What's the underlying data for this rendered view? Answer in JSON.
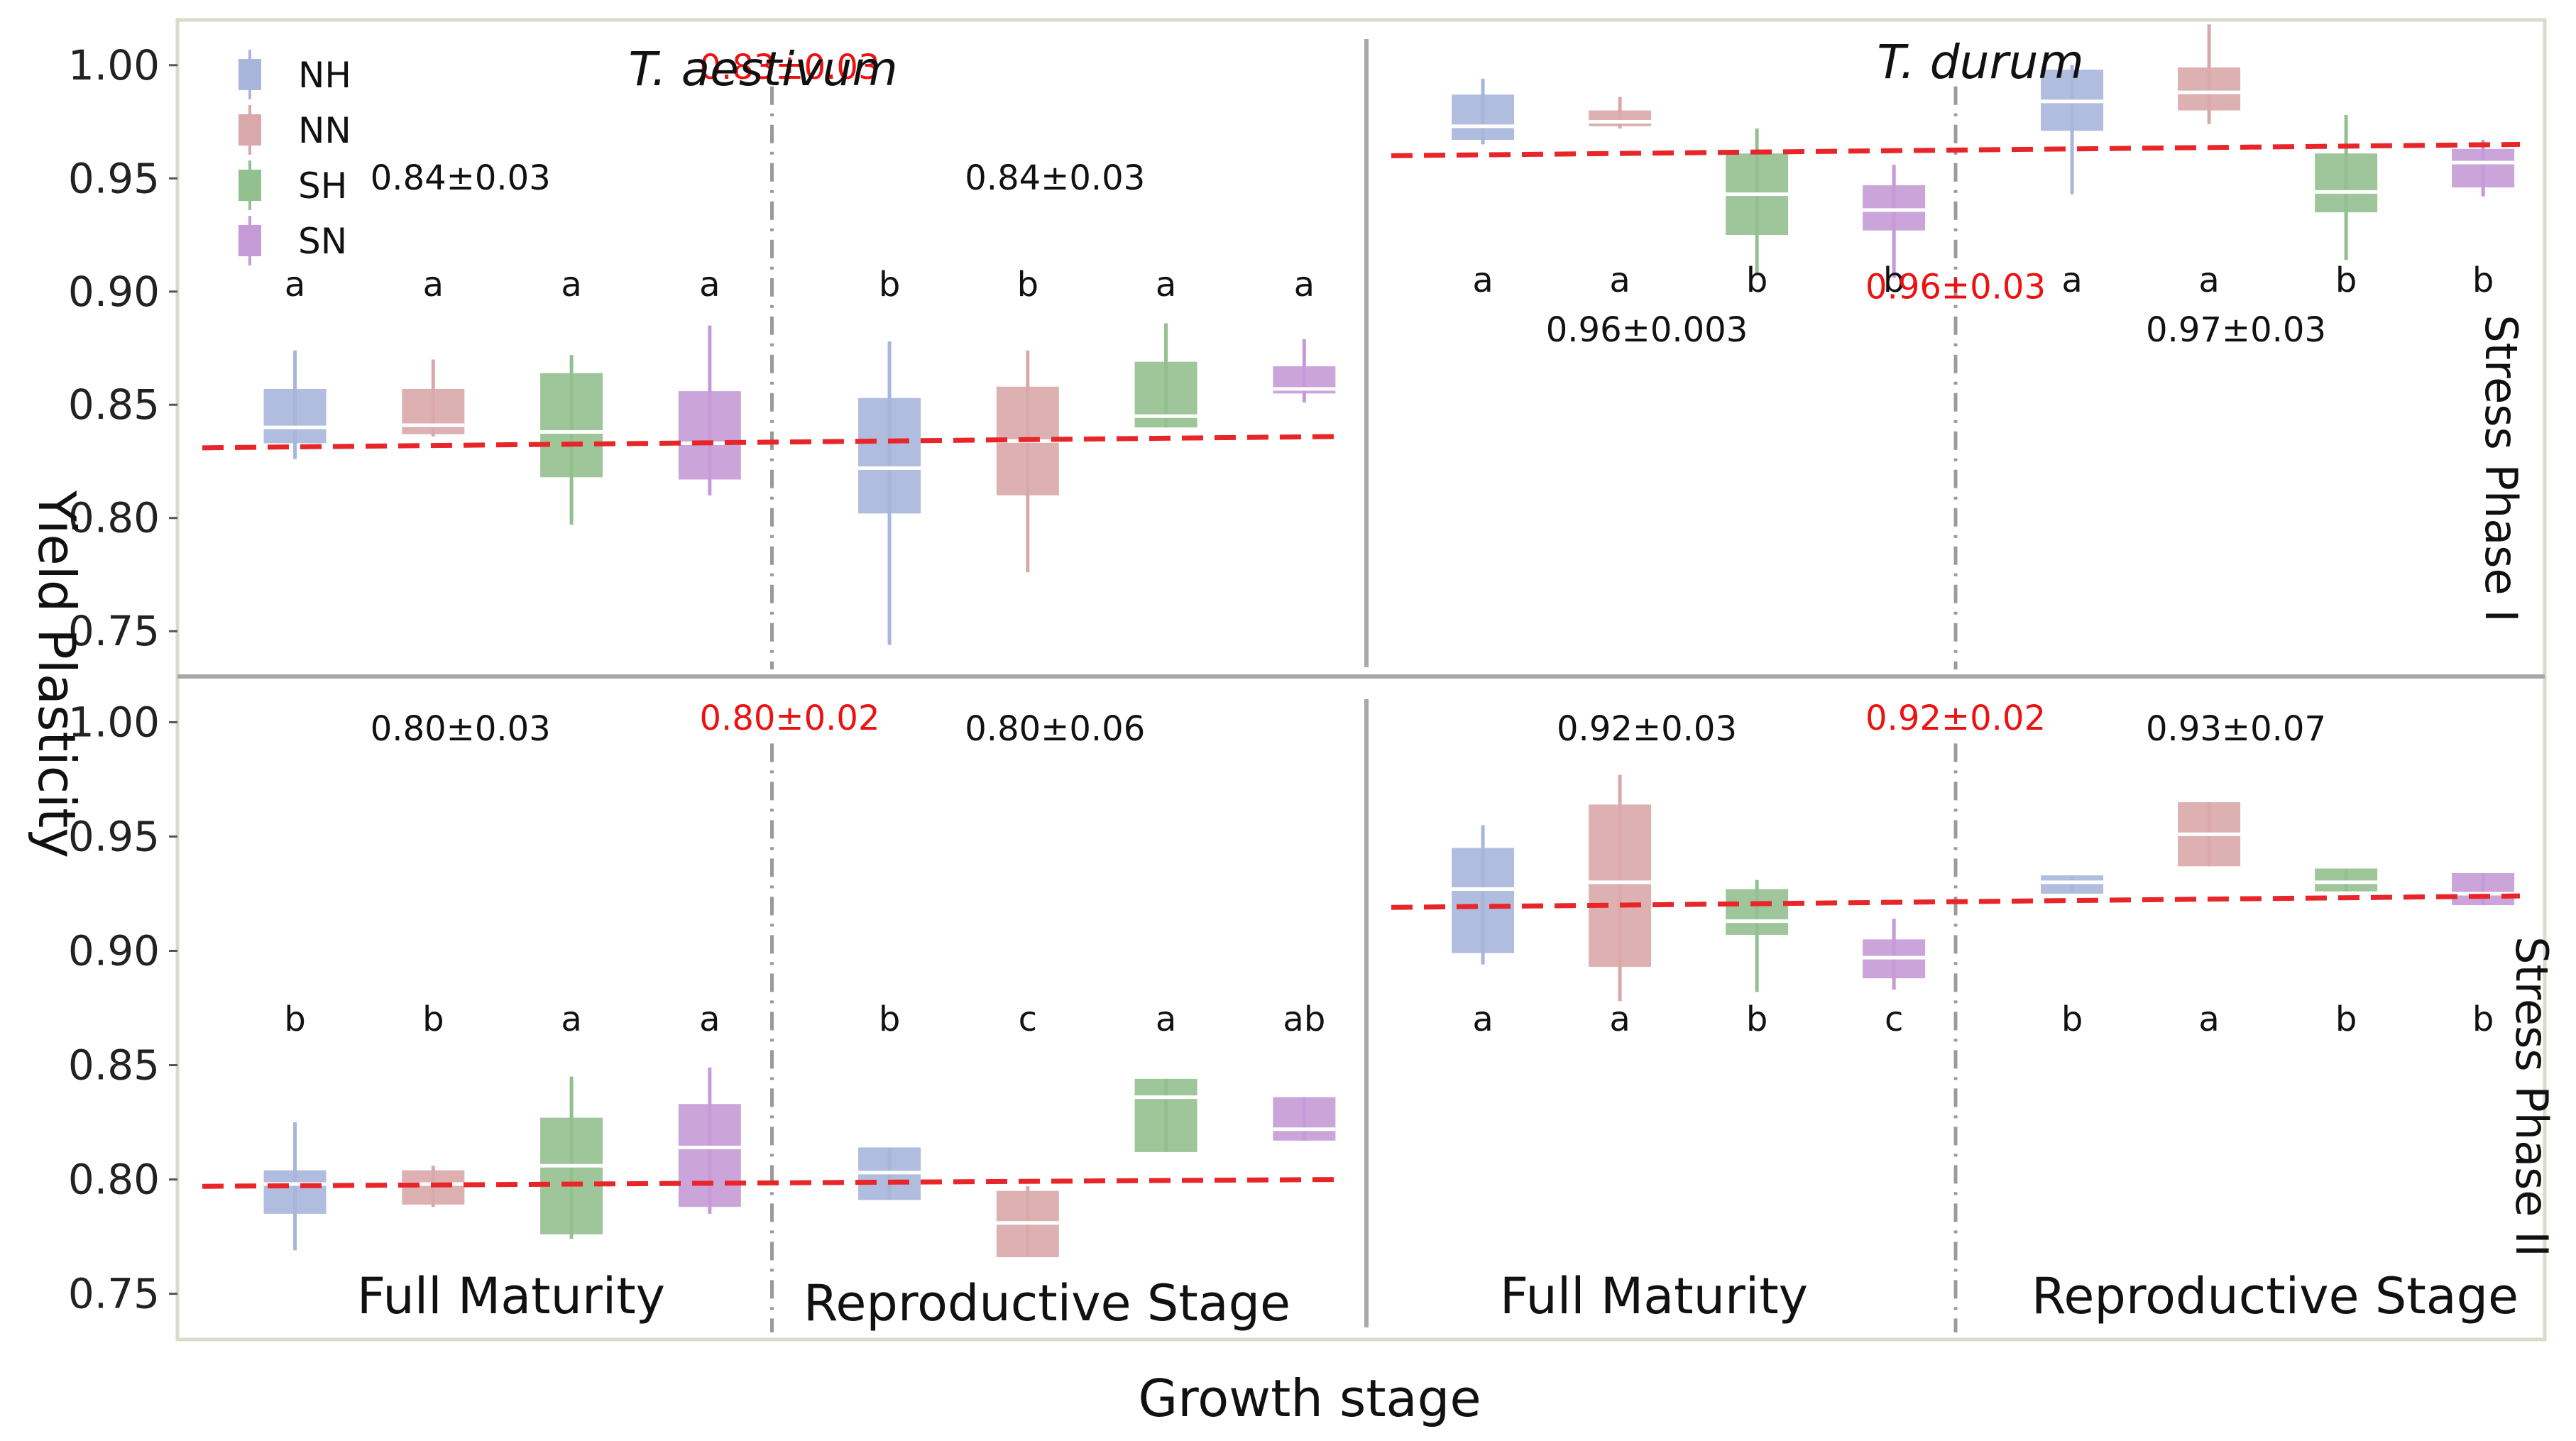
{
  "chart_data": {
    "type": "box",
    "xlabel": "Growth stage",
    "ylabel": "Yield Plasticity",
    "yticks": [
      "1.00",
      "0.95",
      "0.90",
      "0.85",
      "0.80",
      "0.75"
    ],
    "ylim": [
      0.73,
      1.02
    ],
    "legend": {
      "position": "top-left",
      "entries": [
        {
          "name": "NH",
          "color": "#a9b6dc"
        },
        {
          "name": "NN",
          "color": "#d9a8aa"
        },
        {
          "name": "SH",
          "color": "#93c08f"
        },
        {
          "name": "SN",
          "color": "#c59ad6"
        }
      ]
    },
    "columns": [
      {
        "title": "T. aestivum",
        "stages": [
          "Full Maturity",
          "Reproductive Stage"
        ]
      },
      {
        "title": "T. durum",
        "stages": [
          "Full Maturity",
          "Reproductive Stage"
        ]
      }
    ],
    "rows": [
      "Stress Phase I",
      "Stress Phase II"
    ],
    "panels": [
      {
        "row": 0,
        "col": 0,
        "pooled_label": "0.83±0.03",
        "trend": [
          0.831,
          0.836
        ],
        "stages": [
          {
            "stat": "0.84±0.03",
            "boxes": [
              {
                "group": "NH",
                "min": 0.826,
                "q1": 0.833,
                "median": 0.84,
                "q3": 0.857,
                "max": 0.874,
                "letter": "a"
              },
              {
                "group": "NN",
                "min": 0.836,
                "q1": 0.837,
                "median": 0.841,
                "q3": 0.857,
                "max": 0.87,
                "letter": "a"
              },
              {
                "group": "SH",
                "min": 0.797,
                "q1": 0.818,
                "median": 0.838,
                "q3": 0.864,
                "max": 0.872,
                "letter": "a"
              },
              {
                "group": "SN",
                "min": 0.81,
                "q1": 0.817,
                "median": 0.833,
                "q3": 0.856,
                "max": 0.885,
                "letter": "a"
              }
            ]
          },
          {
            "stat": "0.84±0.03",
            "boxes": [
              {
                "group": "NH",
                "min": 0.744,
                "q1": 0.802,
                "median": 0.822,
                "q3": 0.853,
                "max": 0.878,
                "letter": "b"
              },
              {
                "group": "NN",
                "min": 0.776,
                "q1": 0.81,
                "median": 0.834,
                "q3": 0.858,
                "max": 0.874,
                "letter": "b"
              },
              {
                "group": "SH",
                "min": 0.84,
                "q1": 0.84,
                "median": 0.845,
                "q3": 0.869,
                "max": 0.886,
                "letter": "a"
              },
              {
                "group": "SN",
                "min": 0.851,
                "q1": 0.855,
                "median": 0.857,
                "q3": 0.867,
                "max": 0.879,
                "letter": "a"
              }
            ]
          }
        ]
      },
      {
        "row": 0,
        "col": 1,
        "pooled_label": "0.96±0.03",
        "trend": [
          0.96,
          0.965
        ],
        "stages": [
          {
            "stat": "0.96±0.003",
            "boxes": [
              {
                "group": "NH",
                "min": 0.965,
                "q1": 0.967,
                "median": 0.973,
                "q3": 0.987,
                "max": 0.994,
                "letter": "a"
              },
              {
                "group": "NN",
                "min": 0.972,
                "q1": 0.973,
                "median": 0.975,
                "q3": 0.98,
                "max": 0.986,
                "letter": "a"
              },
              {
                "group": "SH",
                "min": 0.908,
                "q1": 0.925,
                "median": 0.943,
                "q3": 0.961,
                "max": 0.972,
                "letter": "b"
              },
              {
                "group": "SN",
                "min": 0.906,
                "q1": 0.927,
                "median": 0.936,
                "q3": 0.947,
                "max": 0.956,
                "letter": "b"
              }
            ]
          },
          {
            "stat": "0.97±0.03",
            "boxes": [
              {
                "group": "NH",
                "min": 0.943,
                "q1": 0.971,
                "median": 0.984,
                "q3": 0.998,
                "max": 1.0,
                "letter": "a"
              },
              {
                "group": "NN",
                "min": 0.974,
                "q1": 0.98,
                "median": 0.988,
                "q3": 0.999,
                "max": 1.018,
                "letter": "a"
              },
              {
                "group": "SH",
                "min": 0.914,
                "q1": 0.935,
                "median": 0.944,
                "q3": 0.961,
                "max": 0.978,
                "letter": "b"
              },
              {
                "group": "SN",
                "min": 0.942,
                "q1": 0.946,
                "median": 0.957,
                "q3": 0.963,
                "max": 0.967,
                "letter": "b"
              }
            ]
          }
        ]
      },
      {
        "row": 1,
        "col": 0,
        "pooled_label": "0.80±0.02",
        "trend": [
          0.797,
          0.8
        ],
        "stages": [
          {
            "stat": "0.80±0.03",
            "boxes": [
              {
                "group": "NH",
                "min": 0.769,
                "q1": 0.785,
                "median": 0.798,
                "q3": 0.804,
                "max": 0.825,
                "letter": "b"
              },
              {
                "group": "NN",
                "min": 0.788,
                "q1": 0.789,
                "median": 0.798,
                "q3": 0.804,
                "max": 0.806,
                "letter": "b"
              },
              {
                "group": "SH",
                "min": 0.774,
                "q1": 0.776,
                "median": 0.806,
                "q3": 0.827,
                "max": 0.845,
                "letter": "a"
              },
              {
                "group": "SN",
                "min": 0.785,
                "q1": 0.788,
                "median": 0.814,
                "q3": 0.833,
                "max": 0.849,
                "letter": "a"
              }
            ]
          },
          {
            "stat": "0.80±0.06",
            "boxes": [
              {
                "group": "NH",
                "min": 0.791,
                "q1": 0.791,
                "median": 0.803,
                "q3": 0.814,
                "max": 0.814,
                "letter": "b"
              },
              {
                "group": "NN",
                "min": 0.766,
                "q1": 0.766,
                "median": 0.781,
                "q3": 0.795,
                "max": 0.797,
                "letter": "c"
              },
              {
                "group": "SH",
                "min": 0.812,
                "q1": 0.812,
                "median": 0.836,
                "q3": 0.844,
                "max": 0.844,
                "letter": "a"
              },
              {
                "group": "SN",
                "min": 0.817,
                "q1": 0.817,
                "median": 0.822,
                "q3": 0.836,
                "max": 0.836,
                "letter": "ab"
              }
            ]
          }
        ]
      },
      {
        "row": 1,
        "col": 1,
        "pooled_label": "0.92±0.02",
        "trend": [
          0.919,
          0.924
        ],
        "stages": [
          {
            "stat": "0.92±0.03",
            "boxes": [
              {
                "group": "NH",
                "min": 0.894,
                "q1": 0.899,
                "median": 0.927,
                "q3": 0.945,
                "max": 0.955,
                "letter": "a"
              },
              {
                "group": "NN",
                "min": 0.878,
                "q1": 0.893,
                "median": 0.93,
                "q3": 0.964,
                "max": 0.977,
                "letter": "a"
              },
              {
                "group": "SH",
                "min": 0.882,
                "q1": 0.907,
                "median": 0.913,
                "q3": 0.927,
                "max": 0.931,
                "letter": "b"
              },
              {
                "group": "SN",
                "min": 0.883,
                "q1": 0.888,
                "median": 0.897,
                "q3": 0.905,
                "max": 0.914,
                "letter": "c"
              }
            ]
          },
          {
            "stat": "0.93±0.07",
            "boxes": [
              {
                "group": "NH",
                "min": 0.925,
                "q1": 0.925,
                "median": 0.93,
                "q3": 0.933,
                "max": 0.933,
                "letter": "b"
              },
              {
                "group": "NN",
                "min": 0.937,
                "q1": 0.937,
                "median": 0.951,
                "q3": 0.965,
                "max": 0.965,
                "letter": "a"
              },
              {
                "group": "SH",
                "min": 0.926,
                "q1": 0.926,
                "median": 0.93,
                "q3": 0.936,
                "max": 0.936,
                "letter": "b"
              },
              {
                "group": "SN",
                "min": 0.92,
                "q1": 0.92,
                "median": 0.925,
                "q3": 0.934,
                "max": 0.934,
                "letter": "b"
              }
            ]
          }
        ]
      }
    ]
  }
}
